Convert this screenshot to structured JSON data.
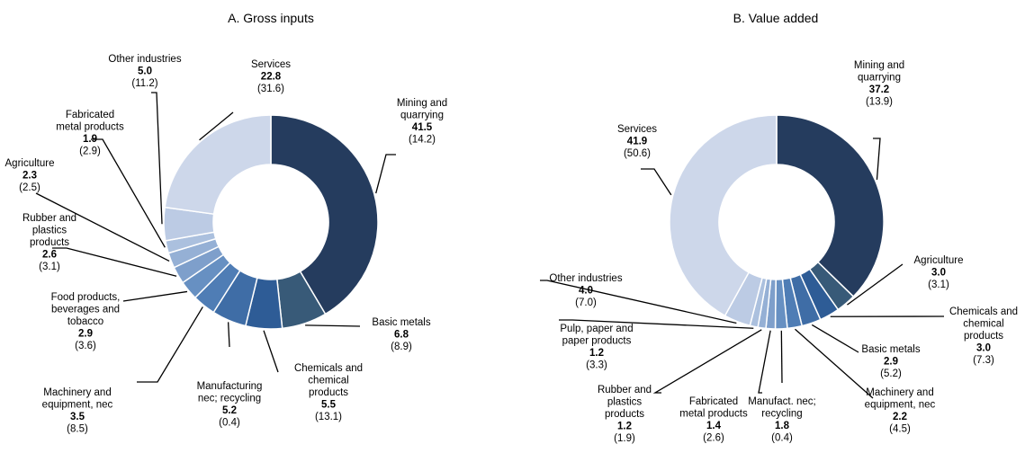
{
  "chart_data": [
    {
      "type": "pie",
      "title": "A.   Gross inputs",
      "slices": [
        {
          "name": "Mining and quarrying",
          "lines": [
            "Mining and",
            "quarrying"
          ],
          "value": 41.5,
          "paren": "(14.2)",
          "color": "#253c5e"
        },
        {
          "name": "Basic metals",
          "lines": [
            "Basic metals"
          ],
          "value": 6.8,
          "paren": "(8.9)",
          "color": "#385a78"
        },
        {
          "name": "Chemicals and chemical products",
          "lines": [
            "Chemicals and",
            "chemical",
            "products"
          ],
          "value": 5.5,
          "paren": "(13.1)",
          "color": "#2e5c96"
        },
        {
          "name": "Manufacturing nec; recycling",
          "lines": [
            "Manufacturing",
            "nec; recycling"
          ],
          "value": 5.2,
          "paren": "(0.4)",
          "color": "#3f6da6"
        },
        {
          "name": "Machinery and equipment, nec",
          "lines": [
            "Machinery and",
            "equipment, nec"
          ],
          "value": 3.5,
          "paren": "(8.5)",
          "color": "#4f7db5"
        },
        {
          "name": "Food products, beverages and tobacco",
          "lines": [
            "Food products,",
            "beverages and",
            "tobacco"
          ],
          "value": 2.9,
          "paren": "(3.6)",
          "color": "#6790c2"
        },
        {
          "name": "Rubber and plastics products",
          "lines": [
            "Rubber and",
            "plastics",
            "products"
          ],
          "value": 2.6,
          "paren": "(3.1)",
          "color": "#7e9fcb"
        },
        {
          "name": "Agriculture",
          "lines": [
            "Agriculture"
          ],
          "value": 2.3,
          "paren": "(2.5)",
          "color": "#95b0d5"
        },
        {
          "name": "Fabricated metal products",
          "lines": [
            "Fabricated",
            "metal products"
          ],
          "value": 1.9,
          "paren": "(2.9)",
          "color": "#abc0de"
        },
        {
          "name": "Other industries",
          "lines": [
            "Other industries"
          ],
          "value": 5.0,
          "paren": "(11.2)",
          "color": "#bccbe4"
        },
        {
          "name": "Services",
          "lines": [
            "Services"
          ],
          "value": 22.8,
          "paren": "(31.6)",
          "color": "#cdd7ea"
        }
      ]
    },
    {
      "type": "pie",
      "title": "B.   Value added",
      "slices": [
        {
          "name": "Mining and quarrying",
          "lines": [
            "Mining and",
            "quarrying"
          ],
          "value": 37.2,
          "paren": "(13.9)",
          "color": "#253c5e"
        },
        {
          "name": "Agriculture",
          "lines": [
            "Agriculture"
          ],
          "value": 3.0,
          "paren": "(3.1)",
          "color": "#385a78"
        },
        {
          "name": "Chemicals and chemical products",
          "lines": [
            "Chemicals and",
            "chemical",
            "products"
          ],
          "value": 3.0,
          "paren": "(7.3)",
          "color": "#2e5c96"
        },
        {
          "name": "Basic metals",
          "lines": [
            "Basic metals"
          ],
          "value": 2.9,
          "paren": "(5.2)",
          "color": "#3f6da6"
        },
        {
          "name": "Machinery and equipment, nec",
          "lines": [
            "Machinery and",
            "equipment, nec"
          ],
          "value": 2.2,
          "paren": "(4.5)",
          "color": "#4f7db5"
        },
        {
          "name": "Manufact. nec; recycling",
          "lines": [
            "Manufact. nec;",
            "recycling"
          ],
          "value": 1.8,
          "paren": "(0.4)",
          "color": "#6790c2"
        },
        {
          "name": "Fabricated metal products",
          "lines": [
            "Fabricated",
            "metal products"
          ],
          "value": 1.4,
          "paren": "(2.6)",
          "color": "#7e9fcb"
        },
        {
          "name": "Rubber and plastics products",
          "lines": [
            "Rubber and",
            "plastics",
            "products"
          ],
          "value": 1.2,
          "paren": "(1.9)",
          "color": "#95b0d5"
        },
        {
          "name": "Pulp, paper and paper products",
          "lines": [
            "Pulp, paper and",
            "paper products"
          ],
          "value": 1.2,
          "paren": "(3.3)",
          "color": "#abc0de"
        },
        {
          "name": "Other industries",
          "lines": [
            "Other industries"
          ],
          "value": 4.0,
          "paren": "(7.0)",
          "color": "#bccbe4"
        },
        {
          "name": "Services",
          "lines": [
            "Services"
          ],
          "value": 41.9,
          "paren": "(50.6)",
          "color": "#cdd7ea"
        }
      ]
    }
  ]
}
